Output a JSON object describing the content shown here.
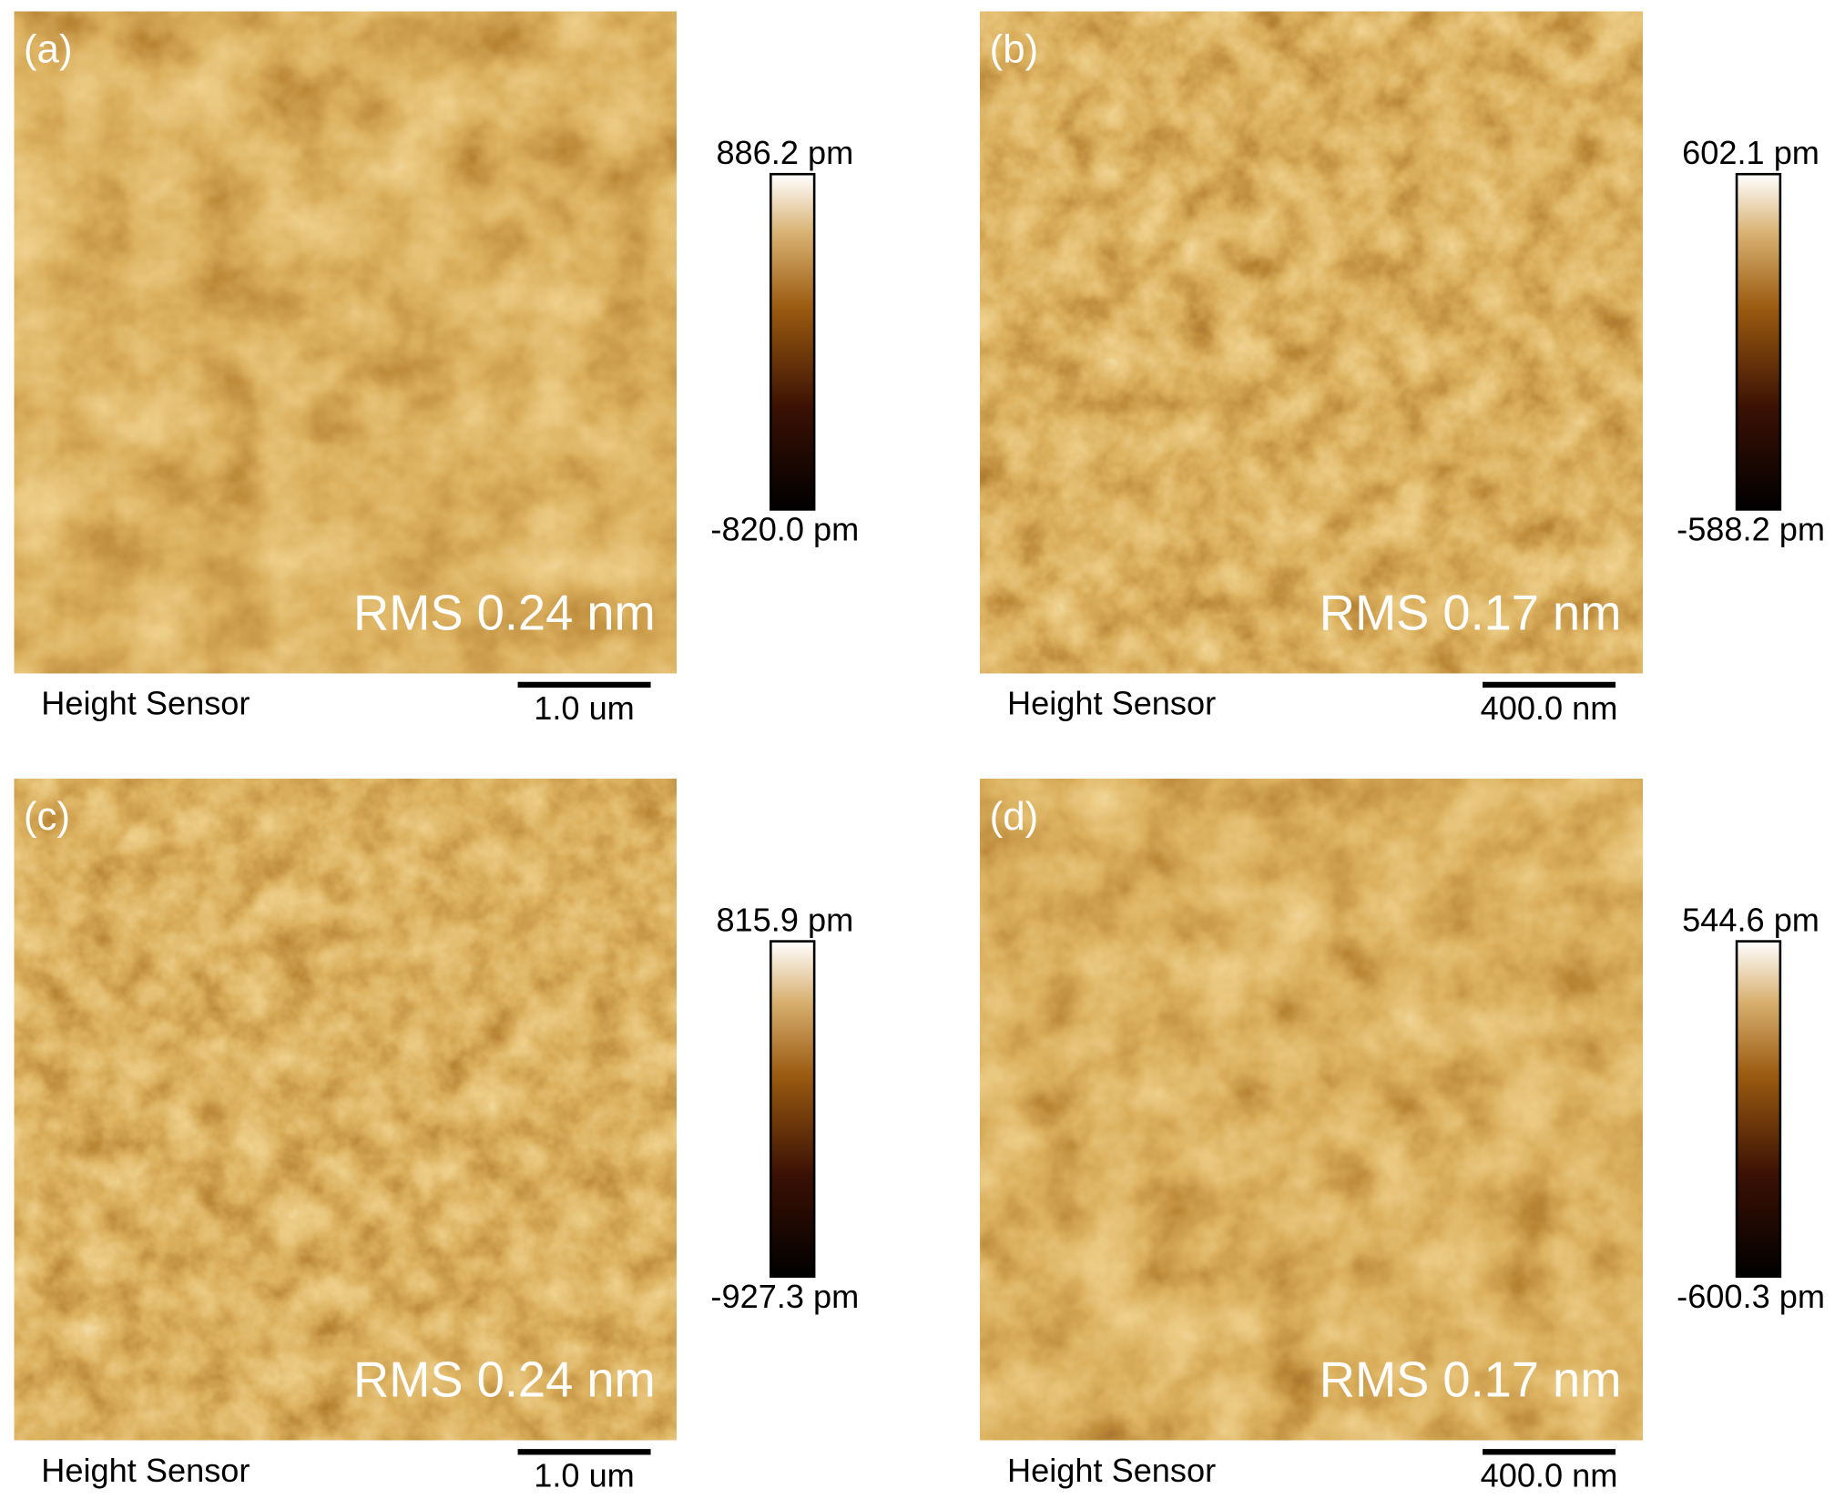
{
  "panels": [
    {
      "label": "(a)",
      "colorbar_max": "886.2 pm",
      "colorbar_min": "-820.0 pm",
      "rms": "RMS 0.24 nm",
      "channel": "Height Sensor",
      "scale_bar": "1.0 um"
    },
    {
      "label": "(b)",
      "colorbar_max": "602.1 pm",
      "colorbar_min": "-588.2 pm",
      "rms": "RMS 0.17 nm",
      "channel": "Height Sensor",
      "scale_bar": "400.0 nm"
    },
    {
      "label": "(c)",
      "colorbar_max": "815.9 pm",
      "colorbar_min": "-927.3 pm",
      "rms": "RMS 0.24 nm",
      "channel": "Height Sensor",
      "scale_bar": "1.0 um"
    },
    {
      "label": "(d)",
      "colorbar_max": "544.6 pm",
      "colorbar_min": "-600.3 pm",
      "rms": "RMS 0.17 nm",
      "channel": "Height Sensor",
      "scale_bar": "400.0 nm"
    }
  ]
}
